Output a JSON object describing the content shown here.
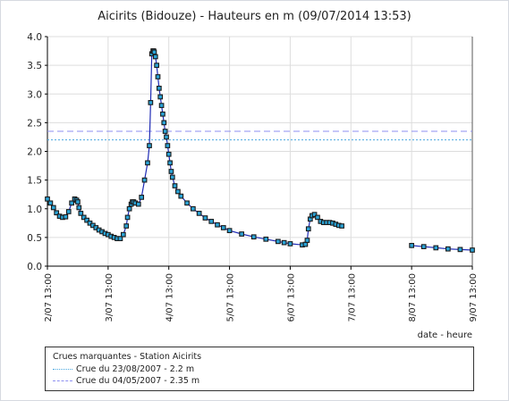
{
  "chart_data": {
    "type": "scatter",
    "title": "Aicirits (Bidouze) - Hauteurs en m (09/07/2014 13:53)",
    "xlabel": "date - heure",
    "ylabel": "",
    "x_unit": "days",
    "x_ticks": [
      "2/07 13:00",
      "3/07 13:00",
      "4/07 13:00",
      "5/07 13:00",
      "6/07 13:00",
      "7/07 13:00",
      "8/07 13:00",
      "9/07 13:00"
    ],
    "x_tick_values": [
      0,
      1,
      2,
      3,
      4,
      5,
      6,
      7
    ],
    "xlim": [
      0,
      7
    ],
    "ylim": [
      0,
      4
    ],
    "y_ticks": [
      "0.0",
      "0.5",
      "1.0",
      "1.5",
      "2.0",
      "2.5",
      "3.0",
      "3.5",
      "4.0"
    ],
    "grid": true,
    "series": [
      {
        "name": "",
        "color": "#1a1a1a",
        "marker_fill": "#2aa3d6",
        "x": [
          0,
          0.05,
          0.1,
          0.15,
          0.2,
          0.25,
          0.3,
          0.35,
          0.4,
          0.45,
          0.48,
          0.5,
          0.52,
          0.55,
          0.6,
          0.65,
          0.7,
          0.75,
          0.8,
          0.85,
          0.9,
          0.95,
          1.0,
          1.05,
          1.1,
          1.15,
          1.2,
          1.25,
          1.3,
          1.32,
          1.35,
          1.38,
          1.4,
          1.42,
          1.45,
          1.5,
          1.55,
          1.6,
          1.65,
          1.68,
          1.7,
          1.72,
          1.74,
          1.75,
          1.76,
          1.78,
          1.8,
          1.82,
          1.84,
          1.86,
          1.88,
          1.9,
          1.92,
          1.94,
          1.96,
          1.98,
          2.0,
          2.02,
          2.04,
          2.06,
          2.1,
          2.15,
          2.2,
          2.3,
          2.4,
          2.5,
          2.6,
          2.7,
          2.8,
          2.9,
          3.0,
          3.2,
          3.4,
          3.6,
          3.8,
          3.9,
          4.0,
          4.2,
          4.25,
          4.28,
          4.3,
          4.33,
          4.36,
          4.4,
          4.45,
          4.5,
          4.55,
          4.6,
          4.65,
          4.7,
          4.75,
          4.8,
          4.85,
          6.0,
          6.2,
          6.4,
          6.6,
          6.8,
          7.0
        ],
        "y": [
          1.17,
          1.1,
          1.02,
          0.93,
          0.87,
          0.85,
          0.86,
          0.95,
          1.1,
          1.17,
          1.15,
          1.12,
          1.02,
          0.92,
          0.85,
          0.8,
          0.75,
          0.71,
          0.67,
          0.63,
          0.6,
          0.57,
          0.55,
          0.52,
          0.5,
          0.48,
          0.48,
          0.55,
          0.7,
          0.85,
          1.0,
          1.08,
          1.12,
          1.12,
          1.1,
          1.08,
          1.2,
          1.5,
          1.8,
          2.1,
          2.85,
          3.7,
          3.75,
          3.75,
          3.73,
          3.65,
          3.5,
          3.3,
          3.1,
          2.95,
          2.8,
          2.65,
          2.5,
          2.35,
          2.25,
          2.1,
          1.95,
          1.8,
          1.65,
          1.55,
          1.4,
          1.3,
          1.22,
          1.1,
          1.0,
          0.92,
          0.84,
          0.78,
          0.72,
          0.67,
          0.62,
          0.56,
          0.51,
          0.47,
          0.43,
          0.41,
          0.39,
          0.37,
          0.38,
          0.45,
          0.65,
          0.82,
          0.88,
          0.9,
          0.85,
          0.78,
          0.76,
          0.76,
          0.76,
          0.75,
          0.73,
          0.71,
          0.7,
          0.36,
          0.34,
          0.32,
          0.3,
          0.29,
          0.28
        ]
      }
    ],
    "reference_lines": [
      {
        "label": "Crue du 23/08/2007 - 2.2 m",
        "y": 2.2,
        "color": "#4aa8e0",
        "style": "dotted"
      },
      {
        "label": "Crue du 04/05/2007 - 2.35 m",
        "y": 2.35,
        "color": "#8d8ff0",
        "style": "dashed"
      }
    ],
    "legend": {
      "title": "Crues marquantes - Station Aicirits",
      "placement": "bottom"
    }
  }
}
